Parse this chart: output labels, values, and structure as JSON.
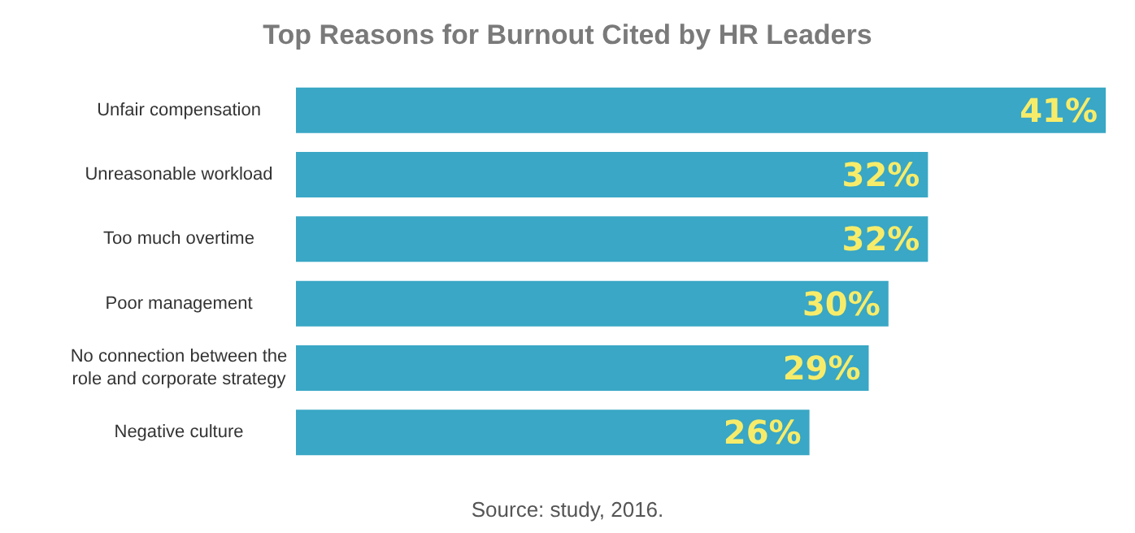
{
  "chart_data": {
    "type": "bar",
    "orientation": "horizontal",
    "title": "Top Reasons for Burnout Cited by HR Leaders",
    "categories": [
      "Unfair compensation",
      "Unreasonable workload",
      "Too much overtime",
      "Poor management",
      "No connection between the\nrole and corporate strategy",
      "Negative culture"
    ],
    "values": [
      41,
      32,
      32,
      30,
      29,
      26
    ],
    "value_labels": [
      "41%",
      "32%",
      "32%",
      "30%",
      "29%",
      "26%"
    ],
    "color": "#39a7c5",
    "annotations": [
      "Source: study, 2016."
    ]
  }
}
